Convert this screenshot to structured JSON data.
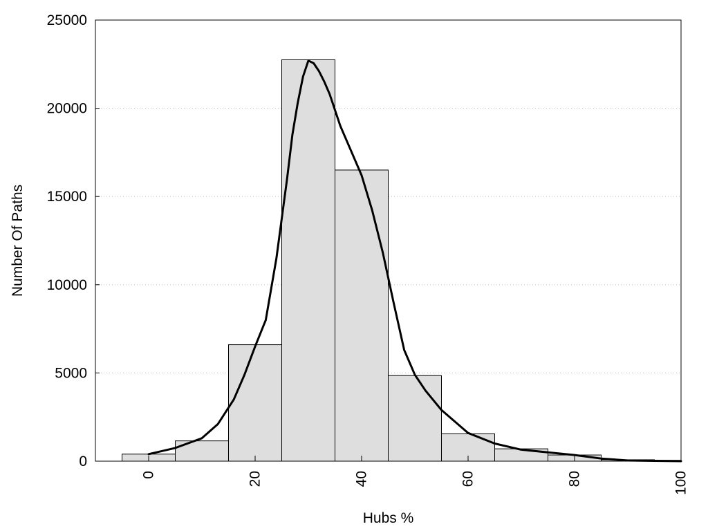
{
  "chart_data": {
    "type": "bar",
    "title": "",
    "xlabel": "Hubs %",
    "ylabel": "Number Of Paths",
    "xlim": [
      -10,
      100
    ],
    "ylim": [
      0,
      25000
    ],
    "x_ticks": [
      0,
      20,
      40,
      60,
      80,
      100
    ],
    "y_ticks": [
      0,
      5000,
      10000,
      15000,
      20000,
      25000
    ],
    "grid": "horizontal dotted",
    "legend": "none",
    "bin_width": 10,
    "bars": [
      {
        "x": 0,
        "value": 400
      },
      {
        "x": 10,
        "value": 1150
      },
      {
        "x": 20,
        "value": 6600
      },
      {
        "x": 30,
        "value": 22750
      },
      {
        "x": 40,
        "value": 16500
      },
      {
        "x": 50,
        "value": 4850
      },
      {
        "x": 60,
        "value": 1550
      },
      {
        "x": 70,
        "value": 700
      },
      {
        "x": 80,
        "value": 350
      },
      {
        "x": 90,
        "value": 80
      },
      {
        "x": 100,
        "value": 50
      }
    ],
    "curve": {
      "x": [
        0,
        5,
        10,
        13,
        16,
        18,
        20,
        22,
        24,
        26,
        27,
        28,
        29,
        30,
        31,
        32,
        33,
        34,
        36,
        38,
        40,
        42,
        44,
        46,
        48,
        50,
        52,
        55,
        60,
        65,
        70,
        75,
        80,
        85,
        90,
        95,
        100
      ],
      "y": [
        400,
        750,
        1300,
        2100,
        3500,
        4900,
        6500,
        8000,
        11500,
        16000,
        18500,
        20300,
        21800,
        22700,
        22550,
        22100,
        21500,
        20800,
        19000,
        17600,
        16200,
        14200,
        11800,
        9000,
        6300,
        4900,
        4000,
        2900,
        1600,
        1000,
        650,
        500,
        350,
        150,
        40,
        20,
        0
      ],
      "color": "#000000"
    },
    "colors": {
      "bar_fill": "#dedede",
      "bar_stroke": "#000000",
      "grid": "#bdbdbd"
    }
  }
}
